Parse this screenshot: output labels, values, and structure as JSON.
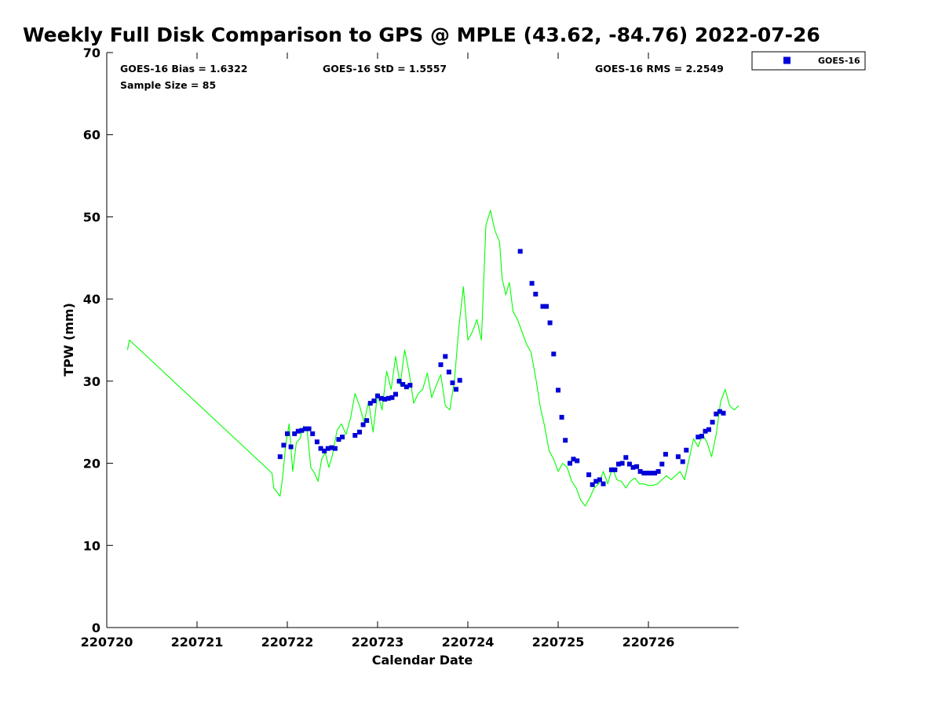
{
  "chart_data": {
    "type": "scatter",
    "title": "Weekly Full Disk Comparison to GPS @ MPLE (43.62, -84.76) 2022-07-26",
    "xlabel": "Calendar Date",
    "ylabel": "TPW (mm)",
    "xlim": [
      0,
      7
    ],
    "ylim": [
      0,
      70
    ],
    "x_ticks": [
      0,
      1,
      2,
      3,
      4,
      5,
      6
    ],
    "x_tick_labels": [
      "220720",
      "220721",
      "220722",
      "220723",
      "220724",
      "220725",
      "220726"
    ],
    "y_ticks": [
      0,
      10,
      20,
      30,
      40,
      50,
      60,
      70
    ],
    "y_tick_labels": [
      "0",
      "10",
      "20",
      "30",
      "40",
      "50",
      "60",
      "70"
    ],
    "x_unit": "days since 2022-07-20 00:00",
    "stats": {
      "bias": "GOES-16 Bias = 1.6322",
      "std": "GOES-16 StD = 1.5557",
      "rms": "GOES-16 RMS = 2.2549",
      "sample": "Sample Size = 85"
    },
    "legend": {
      "position": "top-right, outside plot",
      "entries": [
        "GOES-16"
      ]
    },
    "series": [
      {
        "name": "GPS",
        "kind": "line",
        "color": "#00ff00",
        "x": [
          0.23,
          0.25,
          1.83,
          1.85,
          1.92,
          1.95,
          1.98,
          2.02,
          2.06,
          2.1,
          2.14,
          2.18,
          2.22,
          2.26,
          2.3,
          2.34,
          2.38,
          2.42,
          2.46,
          2.5,
          2.55,
          2.6,
          2.65,
          2.7,
          2.75,
          2.8,
          2.85,
          2.9,
          2.95,
          3.0,
          3.05,
          3.1,
          3.15,
          3.2,
          3.25,
          3.3,
          3.35,
          3.4,
          3.45,
          3.5,
          3.55,
          3.6,
          3.65,
          3.7,
          3.75,
          3.8,
          3.85,
          3.9,
          3.95,
          4.0,
          4.05,
          4.1,
          4.15,
          4.2,
          4.25,
          4.3,
          4.35,
          4.38,
          4.42,
          4.46,
          4.5,
          4.55,
          4.6,
          4.65,
          4.7,
          4.75,
          4.8,
          4.85,
          4.9,
          4.95,
          5.0,
          5.05,
          5.1,
          5.15,
          5.2,
          5.25,
          5.3,
          5.35,
          5.4,
          5.45,
          5.5,
          5.55,
          5.6,
          5.65,
          5.7,
          5.75,
          5.8,
          5.85,
          5.9,
          5.95,
          6.0,
          6.05,
          6.1,
          6.15,
          6.2,
          6.25,
          6.3,
          6.35,
          6.4,
          6.45,
          6.5,
          6.55,
          6.6,
          6.65,
          6.7,
          6.75,
          6.8,
          6.85,
          6.9,
          6.95,
          7.0
        ],
        "y": [
          33.8,
          35.0,
          18.8,
          17.0,
          16.0,
          18.5,
          22.0,
          24.8,
          19.0,
          22.5,
          23.0,
          24.5,
          24.0,
          19.5,
          18.8,
          17.8,
          20.5,
          21.3,
          19.5,
          21.0,
          24.0,
          24.8,
          23.5,
          25.5,
          28.5,
          27.0,
          25.0,
          27.5,
          23.8,
          28.5,
          26.5,
          31.2,
          29.0,
          33.0,
          29.5,
          33.8,
          31.0,
          27.3,
          28.5,
          29.0,
          31.0,
          28.0,
          29.5,
          30.8,
          27.0,
          26.5,
          30.0,
          36.5,
          41.5,
          35.0,
          36.0,
          37.5,
          35.0,
          49.0,
          50.8,
          48.3,
          47.0,
          42.5,
          40.5,
          42.0,
          38.5,
          37.5,
          36.0,
          34.5,
          33.5,
          30.5,
          27.0,
          24.5,
          21.5,
          20.5,
          19.0,
          20.0,
          19.5,
          17.8,
          17.0,
          15.5,
          14.8,
          15.8,
          17.0,
          17.5,
          19.0,
          17.5,
          19.5,
          18.0,
          17.8,
          17.0,
          17.8,
          18.2,
          17.5,
          17.5,
          17.3,
          17.3,
          17.5,
          18.0,
          18.5,
          18.0,
          18.5,
          19.0,
          18.0,
          20.5,
          23.0,
          22.0,
          23.5,
          22.5,
          20.8,
          23.5,
          27.5,
          29.0,
          27.0,
          26.5,
          27.0
        ]
      },
      {
        "name": "GOES-16",
        "kind": "scatter",
        "color": "#0000ff",
        "marker": "square",
        "x": [
          1.92,
          1.96,
          2.0,
          2.04,
          2.08,
          2.12,
          2.16,
          2.2,
          2.24,
          2.28,
          2.33,
          2.37,
          2.41,
          2.45,
          2.49,
          2.53,
          2.57,
          2.61,
          2.75,
          2.8,
          2.84,
          2.88,
          2.92,
          2.96,
          3.0,
          3.04,
          3.08,
          3.12,
          3.16,
          3.2,
          3.24,
          3.28,
          3.32,
          3.36,
          3.7,
          3.75,
          3.79,
          3.83,
          3.87,
          3.91,
          4.58,
          4.71,
          4.75,
          4.83,
          4.87,
          4.91,
          4.95,
          5.0,
          5.04,
          5.08,
          5.13,
          5.17,
          5.21,
          5.34,
          5.38,
          5.42,
          5.46,
          5.5,
          5.59,
          5.63,
          5.67,
          5.71,
          5.75,
          5.79,
          5.83,
          5.87,
          5.91,
          5.95,
          5.99,
          6.03,
          6.07,
          6.11,
          6.15,
          6.19,
          6.33,
          6.38,
          6.42,
          6.55,
          6.59,
          6.63,
          6.67,
          6.71,
          6.75,
          6.79,
          6.83
        ],
        "y": [
          20.8,
          22.2,
          23.6,
          22.0,
          23.6,
          23.9,
          24.0,
          24.2,
          24.2,
          23.6,
          22.6,
          21.8,
          21.5,
          21.8,
          21.9,
          21.8,
          22.9,
          23.2,
          23.4,
          23.8,
          24.7,
          25.2,
          27.3,
          27.6,
          28.2,
          27.9,
          27.8,
          27.9,
          28.0,
          28.4,
          30.0,
          29.6,
          29.3,
          29.5,
          32.0,
          33.0,
          31.1,
          29.8,
          29.0,
          30.1,
          45.8,
          41.9,
          40.6,
          39.1,
          39.1,
          37.1,
          33.3,
          28.9,
          25.6,
          22.8,
          20.0,
          20.5,
          20.3,
          18.6,
          17.4,
          17.8,
          18.0,
          17.5,
          19.2,
          19.2,
          19.9,
          20.0,
          20.7,
          19.9,
          19.5,
          19.6,
          19.0,
          18.8,
          18.8,
          18.8,
          18.8,
          19.0,
          19.9,
          21.1,
          20.8,
          20.2,
          21.6,
          23.2,
          23.3,
          23.9,
          24.1,
          25.0,
          26.0,
          26.3,
          26.1
        ]
      }
    ]
  },
  "colors": {
    "gps_line": "#00ff00",
    "goes_marker": "#0000d8",
    "axis": "#000000",
    "background": "#ffffff"
  }
}
